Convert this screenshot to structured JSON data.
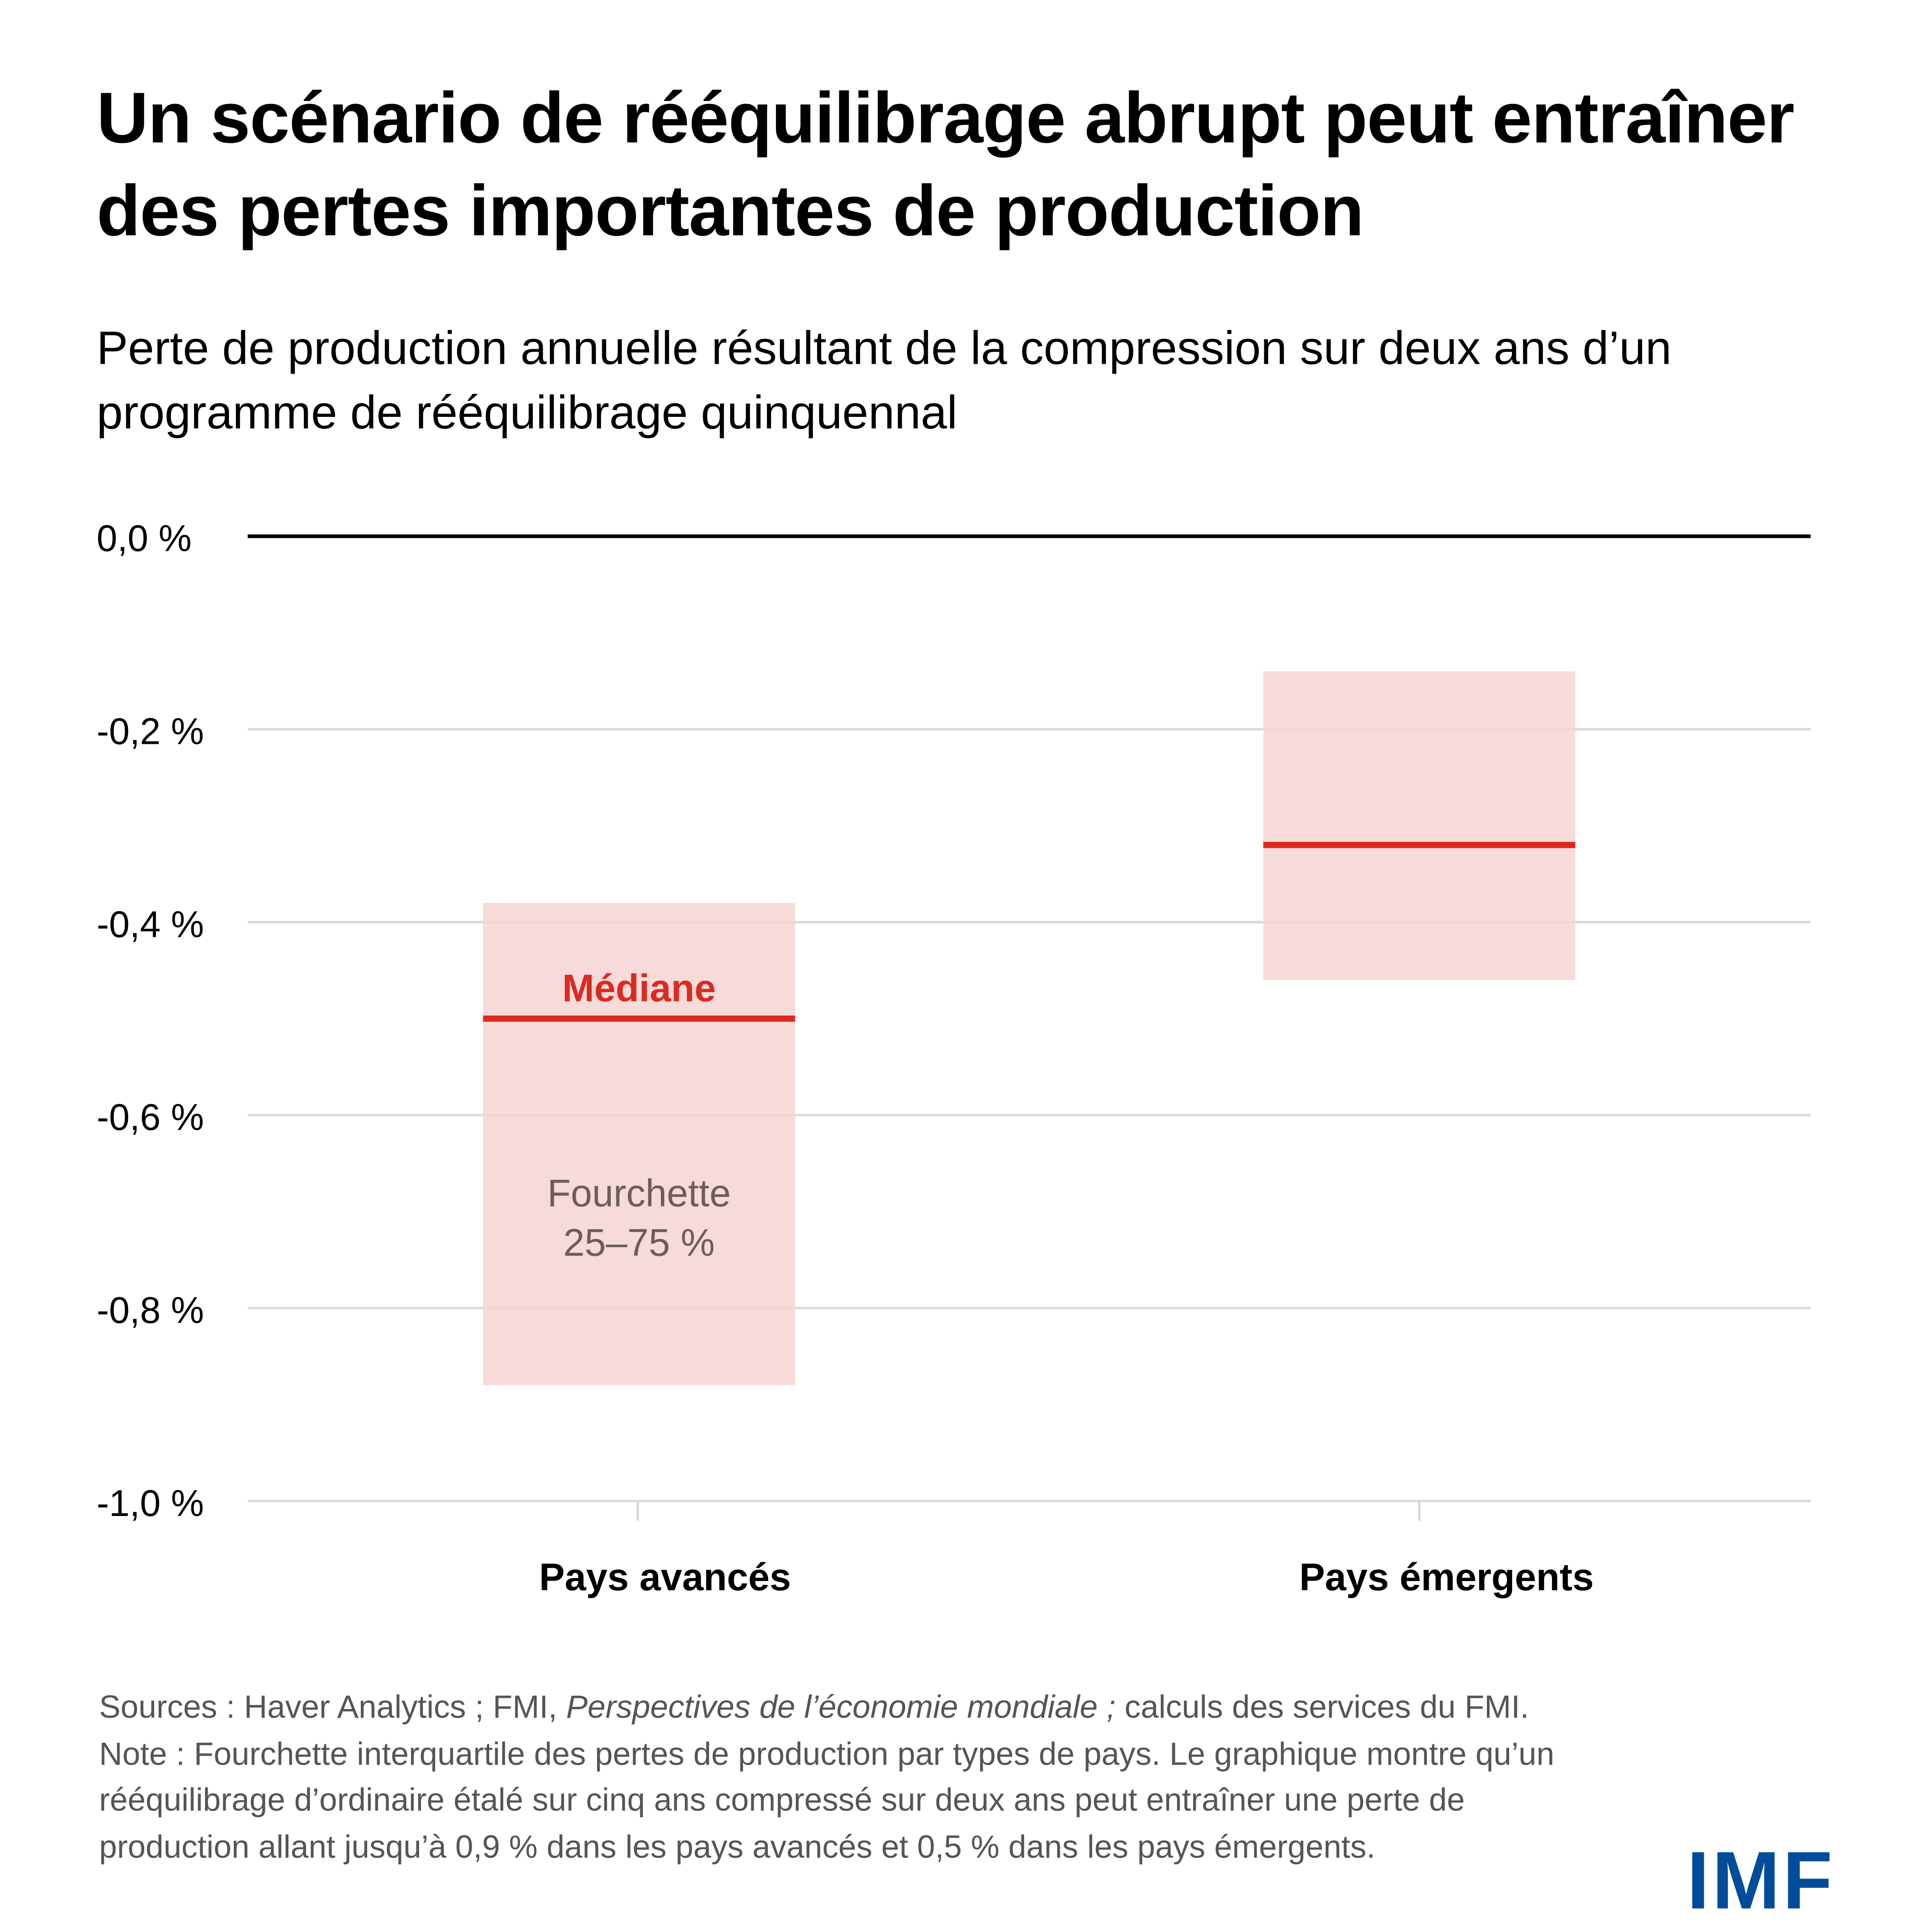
{
  "title": "Un scénario de rééquilibrage abrupt peut entraîner des pertes importantes de production",
  "subtitle": "Perte de production annuelle résultant de la compression sur deux ans d’un programme de rééquilibrage quinquennal",
  "chart_data": {
    "type": "range-bar",
    "categories": [
      "Pays avancés",
      "Pays émergents"
    ],
    "series": [
      {
        "name": "Fourchette 25–75 %",
        "low": [
          -0.88,
          -0.46
        ],
        "high": [
          -0.38,
          -0.14
        ]
      },
      {
        "name": "Médiane",
        "values": [
          -0.5,
          -0.32
        ]
      }
    ],
    "ylim": [
      -1.0,
      0.0
    ],
    "yticks": [
      0.0,
      -0.2,
      -0.4,
      -0.6,
      -0.8,
      -1.0
    ],
    "ytick_labels": [
      "0,0 %",
      "-0,2 %",
      "-0,4 %",
      "-0,6 %",
      "-0,8 %",
      "-1,0 %"
    ],
    "annotations": {
      "median": "Médiane",
      "range_line1": "Fourchette",
      "range_line2": "25–75 %"
    },
    "grid": true,
    "colors": {
      "range": "#f6d4d3",
      "median": "#dc2a1f",
      "grid": "#d9d9d9",
      "zero": "#000000",
      "annotation": "#6b5e5c"
    }
  },
  "notes": {
    "sources_prefix": "Sources : Haver Analytics ; FMI, ",
    "sources_italic": "Perspectives de l’économie mondiale ;",
    "sources_suffix": " calculs des services du FMI.",
    "note": "Note : Fourchette interquartile des pertes de production par types de pays. Le graphique montre qu’un rééquilibrage d’ordinaire étalé sur cinq ans compressé sur deux ans peut entraîner une perte de production allant jusqu’à 0,9 % dans les pays avancés et 0,5 % dans les pays émergents."
  },
  "logo": "IMF"
}
